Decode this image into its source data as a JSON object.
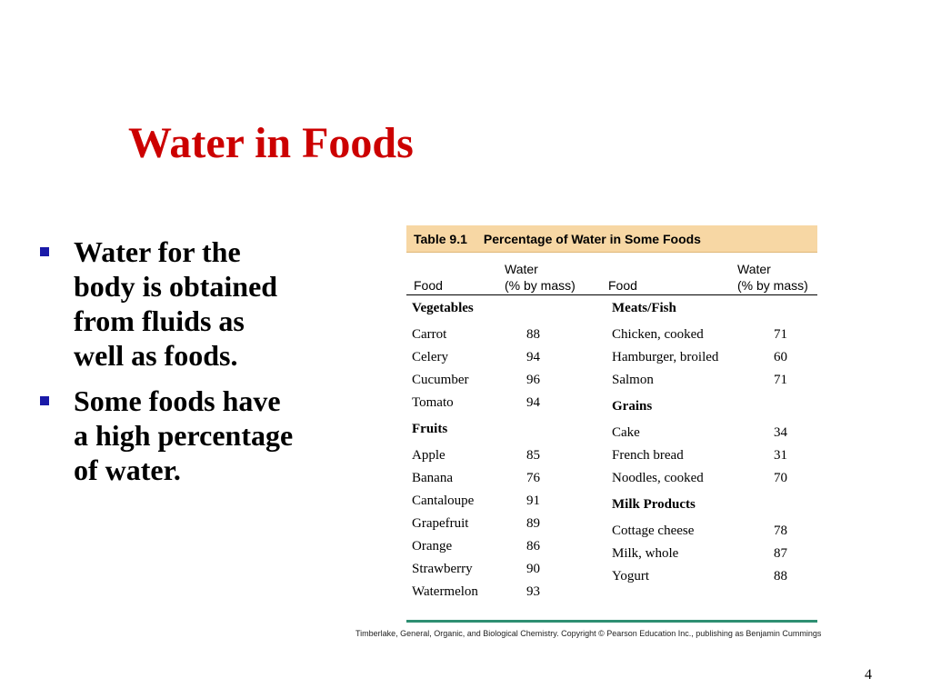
{
  "slide": {
    "title": "Water in Foods",
    "bullets": [
      "Water for the body is obtained from fluids as well as foods.",
      "Some foods have a high percentage of water."
    ],
    "page_number": "4",
    "credit": "Timberlake, General, Organic, and Biological Chemistry. Copyright © Pearson Education Inc., publishing as Benjamin Cummings"
  },
  "table": {
    "number": "Table 9.1",
    "caption": "Percentage of Water in Some Foods",
    "headers": {
      "food_left": "Food",
      "water_left_1": "Water",
      "water_left_2": "(% by mass)",
      "food_right": "Food",
      "water_right_1": "Water",
      "water_right_2": "(% by mass)"
    },
    "left_column": [
      {
        "type": "category",
        "label": "Vegetables"
      },
      {
        "type": "item",
        "food": "Carrot",
        "water": "88"
      },
      {
        "type": "item",
        "food": "Celery",
        "water": "94"
      },
      {
        "type": "item",
        "food": "Cucumber",
        "water": "96"
      },
      {
        "type": "item",
        "food": "Tomato",
        "water": "94"
      },
      {
        "type": "category",
        "label": "Fruits"
      },
      {
        "type": "item",
        "food": "Apple",
        "water": "85"
      },
      {
        "type": "item",
        "food": "Banana",
        "water": "76"
      },
      {
        "type": "item",
        "food": "Cantaloupe",
        "water": "91"
      },
      {
        "type": "item",
        "food": "Grapefruit",
        "water": "89"
      },
      {
        "type": "item",
        "food": "Orange",
        "water": "86"
      },
      {
        "type": "item",
        "food": "Strawberry",
        "water": "90"
      },
      {
        "type": "item",
        "food": "Watermelon",
        "water": "93"
      }
    ],
    "right_column": [
      {
        "type": "category",
        "label": "Meats/Fish"
      },
      {
        "type": "item",
        "food": "Chicken, cooked",
        "water": "71"
      },
      {
        "type": "item",
        "food": "Hamburger, broiled",
        "water": "60"
      },
      {
        "type": "item",
        "food": "Salmon",
        "water": "71"
      },
      {
        "type": "category",
        "label": "Grains"
      },
      {
        "type": "item",
        "food": "Cake",
        "water": "34"
      },
      {
        "type": "item",
        "food": "French bread",
        "water": "31"
      },
      {
        "type": "item",
        "food": "Noodles, cooked",
        "water": "70"
      },
      {
        "type": "category",
        "label": "Milk Products"
      },
      {
        "type": "item",
        "food": "Cottage cheese",
        "water": "78"
      },
      {
        "type": "item",
        "food": "Milk, whole",
        "water": "87"
      },
      {
        "type": "item",
        "food": "Yogurt",
        "water": "88"
      }
    ]
  }
}
